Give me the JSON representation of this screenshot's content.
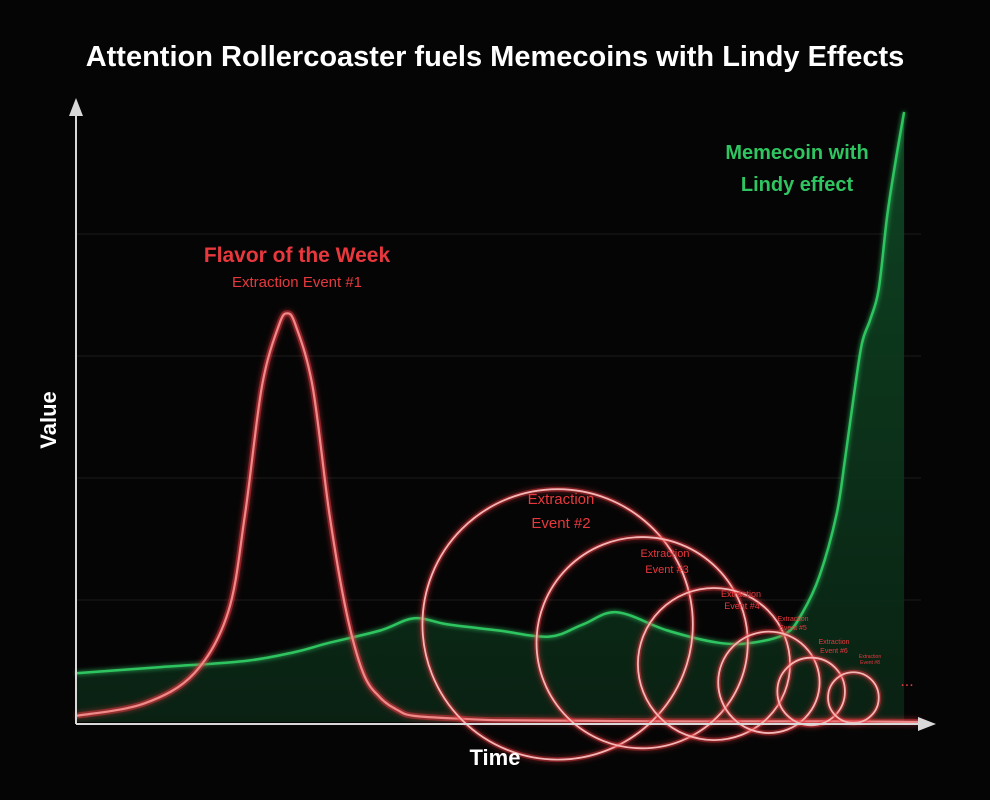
{
  "colors": {
    "background": "#050505",
    "axis": "#d9d9d9",
    "grid": "#1c1c1c",
    "lindy_line": "#2fc560",
    "lindy_fill": "#0b3a1c",
    "flavor_line": "#f08a8a",
    "flavor_glow": "#e8383d",
    "label_red": "#e8383d",
    "label_green": "#2fc560",
    "text": "#ffffff"
  },
  "chart_data": {
    "type": "line",
    "title": "Attention Rollercoaster fuels Memecoins with Lindy Effects",
    "xlabel": "Time",
    "ylabel": "Value",
    "xlim": [
      0,
      100
    ],
    "ylim": [
      0,
      100
    ],
    "grid": true,
    "series": [
      {
        "name": "Memecoin with Lindy effect",
        "color": "#2fc560",
        "x": [
          0,
          10,
          20,
          26,
          30,
          36,
          40,
          44,
          50,
          56,
          60,
          64,
          70,
          76,
          80,
          84,
          86,
          88,
          90,
          91,
          92,
          93,
          94,
          95,
          96,
          97,
          98
        ],
        "y": [
          8,
          9,
          10,
          11.5,
          13,
          15,
          17,
          16,
          15,
          14,
          16,
          18,
          15,
          13,
          13,
          14.5,
          18,
          24,
          34,
          43,
          53,
          62,
          66,
          71,
          83,
          92,
          100
        ]
      },
      {
        "name": "Flavor of the Week",
        "color": "#f08a8a",
        "x": [
          0,
          8,
          14,
          18,
          20,
          22,
          24,
          25,
          26,
          28,
          30,
          32,
          34,
          36,
          38,
          40,
          46,
          50,
          60,
          70,
          80,
          90,
          100
        ],
        "y": [
          1,
          3,
          8,
          18,
          34,
          55,
          65,
          67,
          65,
          55,
          34,
          18,
          8,
          4,
          2,
          1,
          0.5,
          0.3,
          0.2,
          0.1,
          0.1,
          0.1,
          0
        ]
      }
    ],
    "extraction_circles": [
      {
        "name": "Extraction Event #2",
        "x": 57,
        "y": 16,
        "r": 16
      },
      {
        "name": "Extraction Event #3",
        "x": 67,
        "y": 13,
        "r": 12.5
      },
      {
        "name": "Extraction Event #4",
        "x": 75.5,
        "y": 9.5,
        "r": 9
      },
      {
        "name": "Extraction Event #5",
        "x": 82,
        "y": 6.5,
        "r": 6
      },
      {
        "name": "Extraction Event #6",
        "x": 87,
        "y": 5,
        "r": 4
      },
      {
        "name": "Extraction Event #8",
        "x": 92,
        "y": 4,
        "r": 3
      }
    ],
    "annotations": {
      "flavor_title": "Flavor of the Week",
      "flavor_sub": "Extraction Event #1",
      "lindy_line1": "Memecoin with",
      "lindy_line2": "Lindy effect",
      "ev2_line1": "Extraction",
      "ev2_line2": "Event #2",
      "ev3_line1": "Extraction",
      "ev3_line2": "Event #3",
      "ev4_line1": "Extraction",
      "ev4_line2": "Event #4",
      "ev5_line1": "Extraction",
      "ev5_line2": "Event #5",
      "ev6_line1": "Extraction",
      "ev6_line2": "Event #6",
      "ev8_line1": "Extraction",
      "ev8_line2": "Event #8",
      "ellipsis": "..."
    }
  }
}
